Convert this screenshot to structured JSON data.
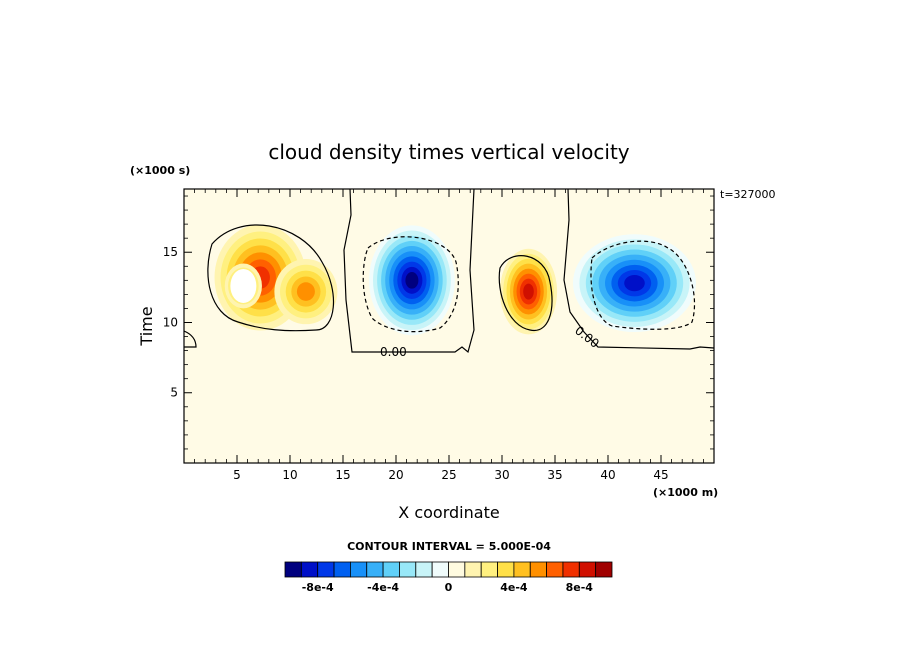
{
  "chart_data": {
    "type": "heatmap",
    "title": "cloud density times vertical velocity",
    "xlabel": "X coordinate",
    "ylabel": "Time",
    "x_unit": "(×1000 m)",
    "y_unit": "(×1000 s)",
    "annotation": "t=327000",
    "xlim": [
      0,
      50
    ],
    "ylim": [
      0,
      19.5
    ],
    "x_ticks": [
      5,
      10,
      15,
      20,
      25,
      30,
      35,
      40,
      45
    ],
    "y_ticks": [
      5,
      10,
      15
    ],
    "contour_interval_text": "CONTOUR INTERVAL = 5.000E-04",
    "contour_labels": [
      "0.00",
      "0.00"
    ],
    "colorbar": {
      "vmin": -0.001,
      "vmax": 0.001,
      "tick_labels": [
        "-8e-4",
        "-4e-4",
        "0",
        "4e-4",
        "8e-4"
      ],
      "tick_values": [
        -0.0008,
        -0.0004,
        0,
        0.0004,
        0.0008
      ],
      "colors": [
        "#00007f",
        "#0010c8",
        "#0038e8",
        "#0060f0",
        "#1890f8",
        "#38b0f8",
        "#60d0f8",
        "#98e8f8",
        "#c8f4f8",
        "#f0fcfc",
        "#fffbe0",
        "#fff4b0",
        "#fff080",
        "#ffe048",
        "#ffc020",
        "#ff9000",
        "#ff6000",
        "#f03000",
        "#d01000",
        "#a00000"
      ]
    },
    "features": [
      {
        "x": 7.2,
        "y": 13.2,
        "sx": 3.2,
        "sy": 2.6,
        "value": 0.00072
      },
      {
        "x": 11.5,
        "y": 12.2,
        "sx": 2.2,
        "sy": 1.6,
        "value": 0.00055
      },
      {
        "x": 5.6,
        "y": 12.6,
        "sx": 1.3,
        "sy": 1.1,
        "value": 0.0006
      },
      {
        "x": 21.5,
        "y": 13.0,
        "sx": 3.0,
        "sy": 2.7,
        "value": -0.00095
      },
      {
        "x": 32.5,
        "y": 12.2,
        "sx": 2.0,
        "sy": 2.1,
        "value": 0.00085
      },
      {
        "x": 42.5,
        "y": 12.8,
        "sx": 4.3,
        "sy": 2.4,
        "value": -0.0008
      }
    ],
    "saturated_region": {
      "x": 5.6,
      "y": 12.6,
      "label": "white (above max)"
    }
  }
}
